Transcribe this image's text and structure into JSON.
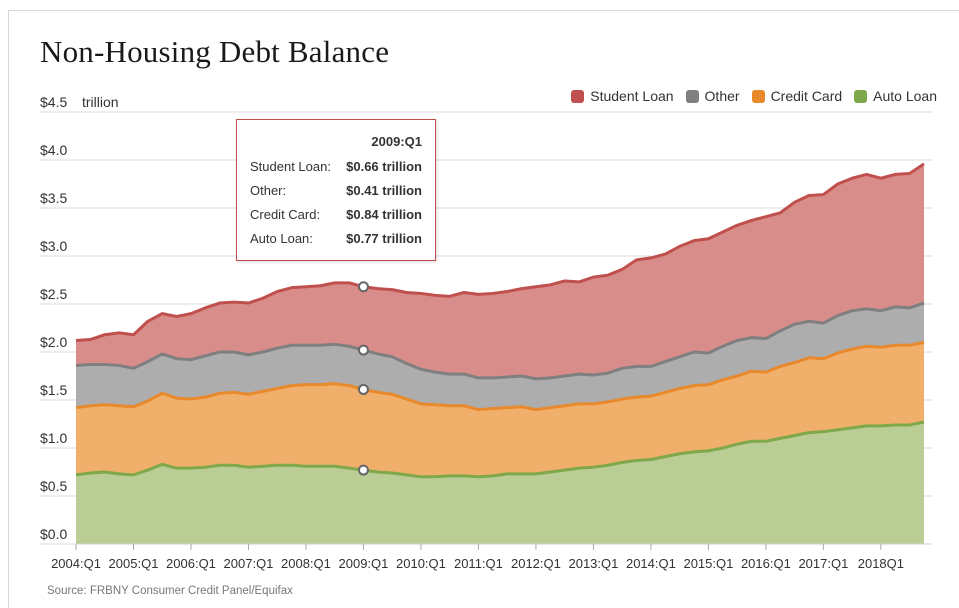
{
  "title": "Non-Housing Debt Balance",
  "unit_label": "trillion",
  "source": "Source: FRBNY Consumer Credit Panel/Equifax",
  "legend": [
    {
      "name": "Student Loan",
      "color": "#c0504d"
    },
    {
      "name": "Other",
      "color": "#7f7f7f"
    },
    {
      "name": "Credit Card",
      "color": "#e8892b"
    },
    {
      "name": "Auto Loan",
      "color": "#7fa84b"
    }
  ],
  "tooltip": {
    "period": "2009:Q1",
    "rows": [
      {
        "label": "Student Loan:",
        "value": "$0.66 trillion"
      },
      {
        "label": "Other:",
        "value": "$0.41 trillion"
      },
      {
        "label": "Credit Card:",
        "value": "$0.84 trillion"
      },
      {
        "label": "Auto Loan:",
        "value": "$0.77 trillion"
      }
    ]
  },
  "chart_data": {
    "type": "area",
    "stacked": true,
    "title": "Non-Housing Debt Balance",
    "ylabel": "trillion",
    "ylim": [
      0,
      4.5
    ],
    "y_ticks": [
      "$0.0",
      "$0.5",
      "$1.0",
      "$1.5",
      "$2.0",
      "$2.5",
      "$3.0",
      "$3.5",
      "$4.0",
      "$4.5"
    ],
    "x_ticks": [
      "2004:Q1",
      "2005:Q1",
      "2006:Q1",
      "2007:Q1",
      "2008:Q1",
      "2009:Q1",
      "2010:Q1",
      "2011:Q1",
      "2012:Q1",
      "2013:Q1",
      "2014:Q1",
      "2015:Q1",
      "2016:Q1",
      "2017:Q1",
      "2018Q1"
    ],
    "x_start": "2004:Q1",
    "x_end": "2018:Q4",
    "legend_position": "top-right",
    "grid": true,
    "highlight_period": "2009:Q1",
    "series": [
      {
        "name": "Auto Loan",
        "color": "#7fa84b",
        "fill": "#b9cd95",
        "values": [
          0.72,
          0.74,
          0.75,
          0.73,
          0.72,
          0.77,
          0.83,
          0.79,
          0.79,
          0.8,
          0.82,
          0.82,
          0.8,
          0.81,
          0.82,
          0.82,
          0.81,
          0.81,
          0.81,
          0.79,
          0.77,
          0.75,
          0.74,
          0.72,
          0.7,
          0.7,
          0.71,
          0.71,
          0.7,
          0.71,
          0.73,
          0.73,
          0.73,
          0.75,
          0.77,
          0.79,
          0.8,
          0.82,
          0.85,
          0.87,
          0.88,
          0.91,
          0.94,
          0.96,
          0.97,
          1.0,
          1.04,
          1.07,
          1.07,
          1.1,
          1.13,
          1.16,
          1.17,
          1.19,
          1.21,
          1.23,
          1.23,
          1.24,
          1.24,
          1.27
        ]
      },
      {
        "name": "Credit Card",
        "color": "#e8892b",
        "fill": "#f0b06b",
        "values": [
          0.7,
          0.7,
          0.7,
          0.71,
          0.71,
          0.72,
          0.74,
          0.73,
          0.72,
          0.73,
          0.75,
          0.76,
          0.76,
          0.78,
          0.8,
          0.83,
          0.85,
          0.85,
          0.86,
          0.86,
          0.84,
          0.83,
          0.82,
          0.79,
          0.76,
          0.75,
          0.73,
          0.73,
          0.7,
          0.7,
          0.69,
          0.7,
          0.67,
          0.67,
          0.67,
          0.67,
          0.66,
          0.66,
          0.66,
          0.66,
          0.66,
          0.67,
          0.68,
          0.69,
          0.69,
          0.71,
          0.71,
          0.73,
          0.72,
          0.75,
          0.76,
          0.78,
          0.76,
          0.8,
          0.82,
          0.83,
          0.82,
          0.83,
          0.83,
          0.83
        ]
      },
      {
        "name": "Other",
        "color": "#7f7f7f",
        "fill": "#adadad",
        "values": [
          0.44,
          0.43,
          0.42,
          0.42,
          0.4,
          0.41,
          0.41,
          0.41,
          0.41,
          0.43,
          0.43,
          0.42,
          0.41,
          0.41,
          0.42,
          0.42,
          0.41,
          0.41,
          0.41,
          0.41,
          0.41,
          0.4,
          0.39,
          0.37,
          0.36,
          0.34,
          0.33,
          0.33,
          0.33,
          0.32,
          0.32,
          0.32,
          0.32,
          0.31,
          0.31,
          0.31,
          0.3,
          0.3,
          0.32,
          0.32,
          0.31,
          0.32,
          0.33,
          0.35,
          0.33,
          0.35,
          0.37,
          0.35,
          0.35,
          0.37,
          0.4,
          0.38,
          0.37,
          0.39,
          0.4,
          0.39,
          0.38,
          0.4,
          0.39,
          0.41
        ]
      },
      {
        "name": "Student Loan",
        "color": "#c0504d",
        "fill": "#d98d8b",
        "values": [
          0.26,
          0.26,
          0.31,
          0.34,
          0.35,
          0.42,
          0.42,
          0.44,
          0.48,
          0.5,
          0.51,
          0.52,
          0.54,
          0.56,
          0.59,
          0.6,
          0.61,
          0.62,
          0.64,
          0.66,
          0.66,
          0.68,
          0.7,
          0.74,
          0.79,
          0.8,
          0.81,
          0.85,
          0.87,
          0.88,
          0.89,
          0.91,
          0.96,
          0.97,
          0.99,
          0.96,
          1.02,
          1.02,
          1.03,
          1.11,
          1.13,
          1.12,
          1.15,
          1.16,
          1.19,
          1.19,
          1.2,
          1.22,
          1.27,
          1.23,
          1.27,
          1.31,
          1.34,
          1.37,
          1.38,
          1.4,
          1.38,
          1.38,
          1.4,
          1.45
        ]
      }
    ]
  }
}
